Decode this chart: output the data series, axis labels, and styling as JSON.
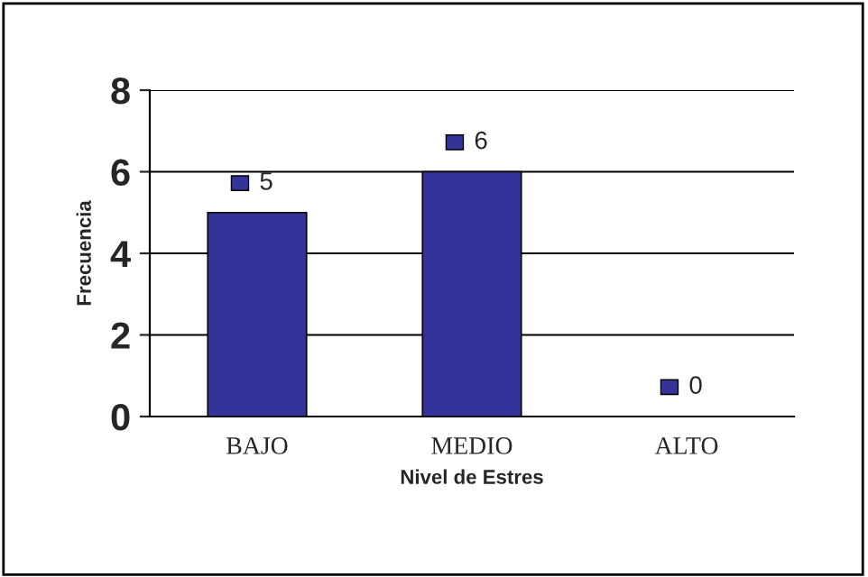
{
  "chart_data": {
    "type": "bar",
    "xlabel": "Nivel de Estres",
    "ylabel": "Frecuencia",
    "categories": [
      "BAJO",
      "MEDIO",
      "ALTO"
    ],
    "values": [
      5,
      6,
      0
    ],
    "color": "#333399",
    "ylim": [
      0,
      8
    ],
    "yticks": [
      0,
      2,
      4,
      6,
      8
    ],
    "grid": "y",
    "data_labels": true
  }
}
